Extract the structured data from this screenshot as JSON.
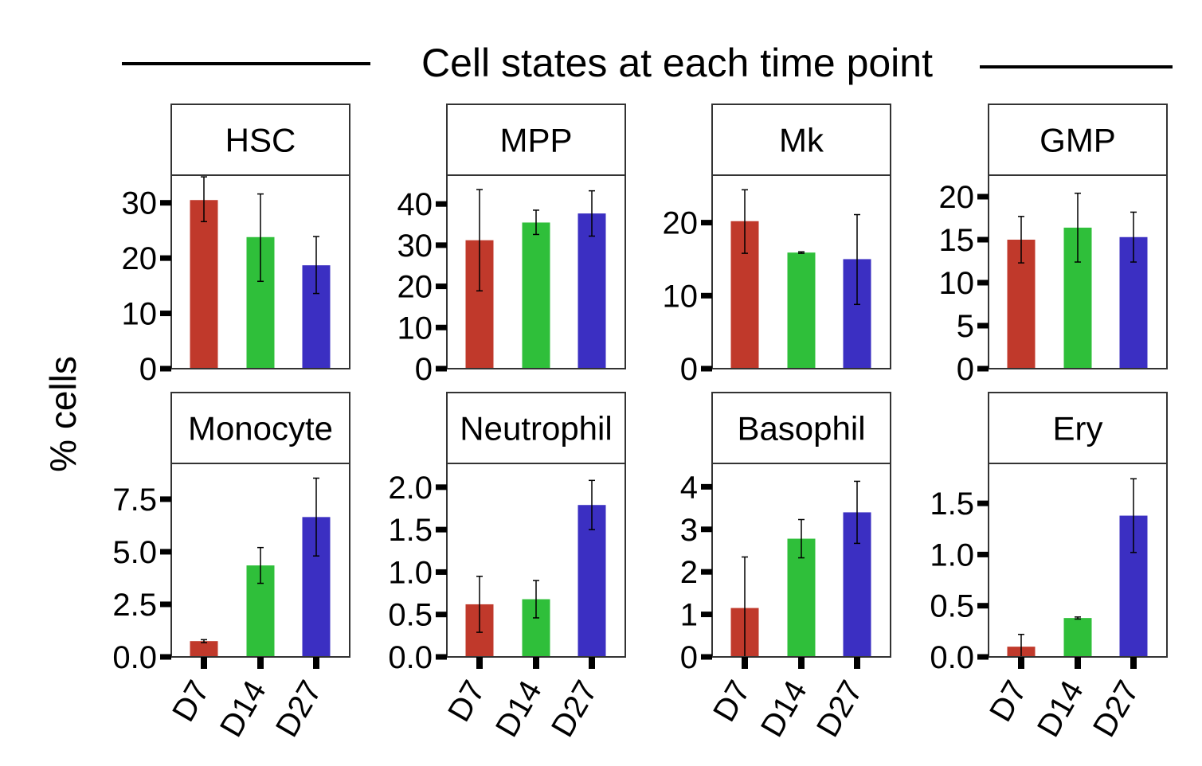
{
  "title": "Cell states at each time point",
  "ylabel": "% cells",
  "colors": {
    "D7": "#c0392b",
    "D14": "#2fbf3a",
    "D27": "#3b2fc2"
  },
  "chart_data": [
    {
      "type": "bar",
      "panel": "HSC",
      "categories": [
        "D7",
        "D14",
        "D27"
      ],
      "values": [
        30.5,
        23.8,
        18.7
      ],
      "errors": [
        [
          26.6,
          34.7
        ],
        [
          15.8,
          31.6
        ],
        [
          13.6,
          23.9
        ]
      ],
      "ylim": [
        0,
        35
      ],
      "yticks": [
        0,
        10,
        20,
        30
      ],
      "ytick_labels": [
        "0",
        "10",
        "20",
        "30"
      ]
    },
    {
      "type": "bar",
      "panel": "MPP",
      "categories": [
        "D7",
        "D14",
        "D27"
      ],
      "values": [
        31.2,
        35.5,
        37.7
      ],
      "errors": [
        [
          18.9,
          43.5
        ],
        [
          32.6,
          38.5
        ],
        [
          32.2,
          43.2
        ]
      ],
      "ylim": [
        0,
        47
      ],
      "yticks": [
        0,
        10,
        20,
        30,
        40
      ],
      "ytick_labels": [
        "0",
        "10",
        "20",
        "30",
        "40"
      ]
    },
    {
      "type": "bar",
      "panel": "Mk",
      "categories": [
        "D7",
        "D14",
        "D27"
      ],
      "values": [
        20.2,
        15.9,
        15.0
      ],
      "errors": [
        [
          15.8,
          24.5
        ],
        [
          15.8,
          16.0
        ],
        [
          8.8,
          21.1
        ]
      ],
      "ylim": [
        0,
        26.5
      ],
      "yticks": [
        0,
        10,
        20
      ],
      "ytick_labels": [
        "0",
        "10",
        "20"
      ]
    },
    {
      "type": "bar",
      "panel": "GMP",
      "categories": [
        "D7",
        "D14",
        "D27"
      ],
      "values": [
        15.0,
        16.4,
        15.3
      ],
      "errors": [
        [
          12.3,
          17.7
        ],
        [
          12.4,
          20.4
        ],
        [
          12.4,
          18.2
        ]
      ],
      "ylim": [
        0,
        22.5
      ],
      "yticks": [
        0,
        5,
        10,
        15,
        20
      ],
      "ytick_labels": [
        "0",
        "5",
        "10",
        "15",
        "20"
      ]
    },
    {
      "type": "bar",
      "panel": "Monocyte",
      "categories": [
        "D7",
        "D14",
        "D27"
      ],
      "values": [
        0.75,
        4.35,
        6.65
      ],
      "errors": [
        [
          0.68,
          0.82
        ],
        [
          3.5,
          5.2
        ],
        [
          4.8,
          8.5
        ]
      ],
      "ylim": [
        0,
        9.2
      ],
      "yticks": [
        0,
        2.5,
        5.0,
        7.5
      ],
      "ytick_labels": [
        "0.0",
        "2.5",
        "5.0",
        "7.5"
      ]
    },
    {
      "type": "bar",
      "panel": "Neutrophil",
      "categories": [
        "D7",
        "D14",
        "D27"
      ],
      "values": [
        0.62,
        0.68,
        1.79
      ],
      "errors": [
        [
          0.29,
          0.95
        ],
        [
          0.46,
          0.9
        ],
        [
          1.5,
          2.08
        ]
      ],
      "ylim": [
        0,
        2.28
      ],
      "yticks": [
        0,
        0.5,
        1.0,
        1.5,
        2.0
      ],
      "ytick_labels": [
        "0.0",
        "0.5",
        "1.0",
        "1.5",
        "2.0"
      ]
    },
    {
      "type": "bar",
      "panel": "Basophil",
      "categories": [
        "D7",
        "D14",
        "D27"
      ],
      "values": [
        1.15,
        2.78,
        3.4
      ],
      "errors": [
        [
          0,
          2.35
        ],
        [
          2.33,
          3.23
        ],
        [
          2.67,
          4.13
        ]
      ],
      "ylim": [
        0,
        4.55
      ],
      "yticks": [
        0,
        1,
        2,
        3,
        4
      ],
      "ytick_labels": [
        "0",
        "1",
        "2",
        "3",
        "4"
      ]
    },
    {
      "type": "bar",
      "panel": "Ery",
      "categories": [
        "D7",
        "D14",
        "D27"
      ],
      "values": [
        0.1,
        0.38,
        1.38
      ],
      "errors": [
        [
          0,
          0.22
        ],
        [
          0.37,
          0.39
        ],
        [
          1.02,
          1.74
        ]
      ],
      "ylim": [
        0,
        1.89
      ],
      "yticks": [
        0,
        0.5,
        1.0,
        1.5
      ],
      "ytick_labels": [
        "0.0",
        "0.5",
        "1.0",
        "1.5"
      ]
    }
  ]
}
